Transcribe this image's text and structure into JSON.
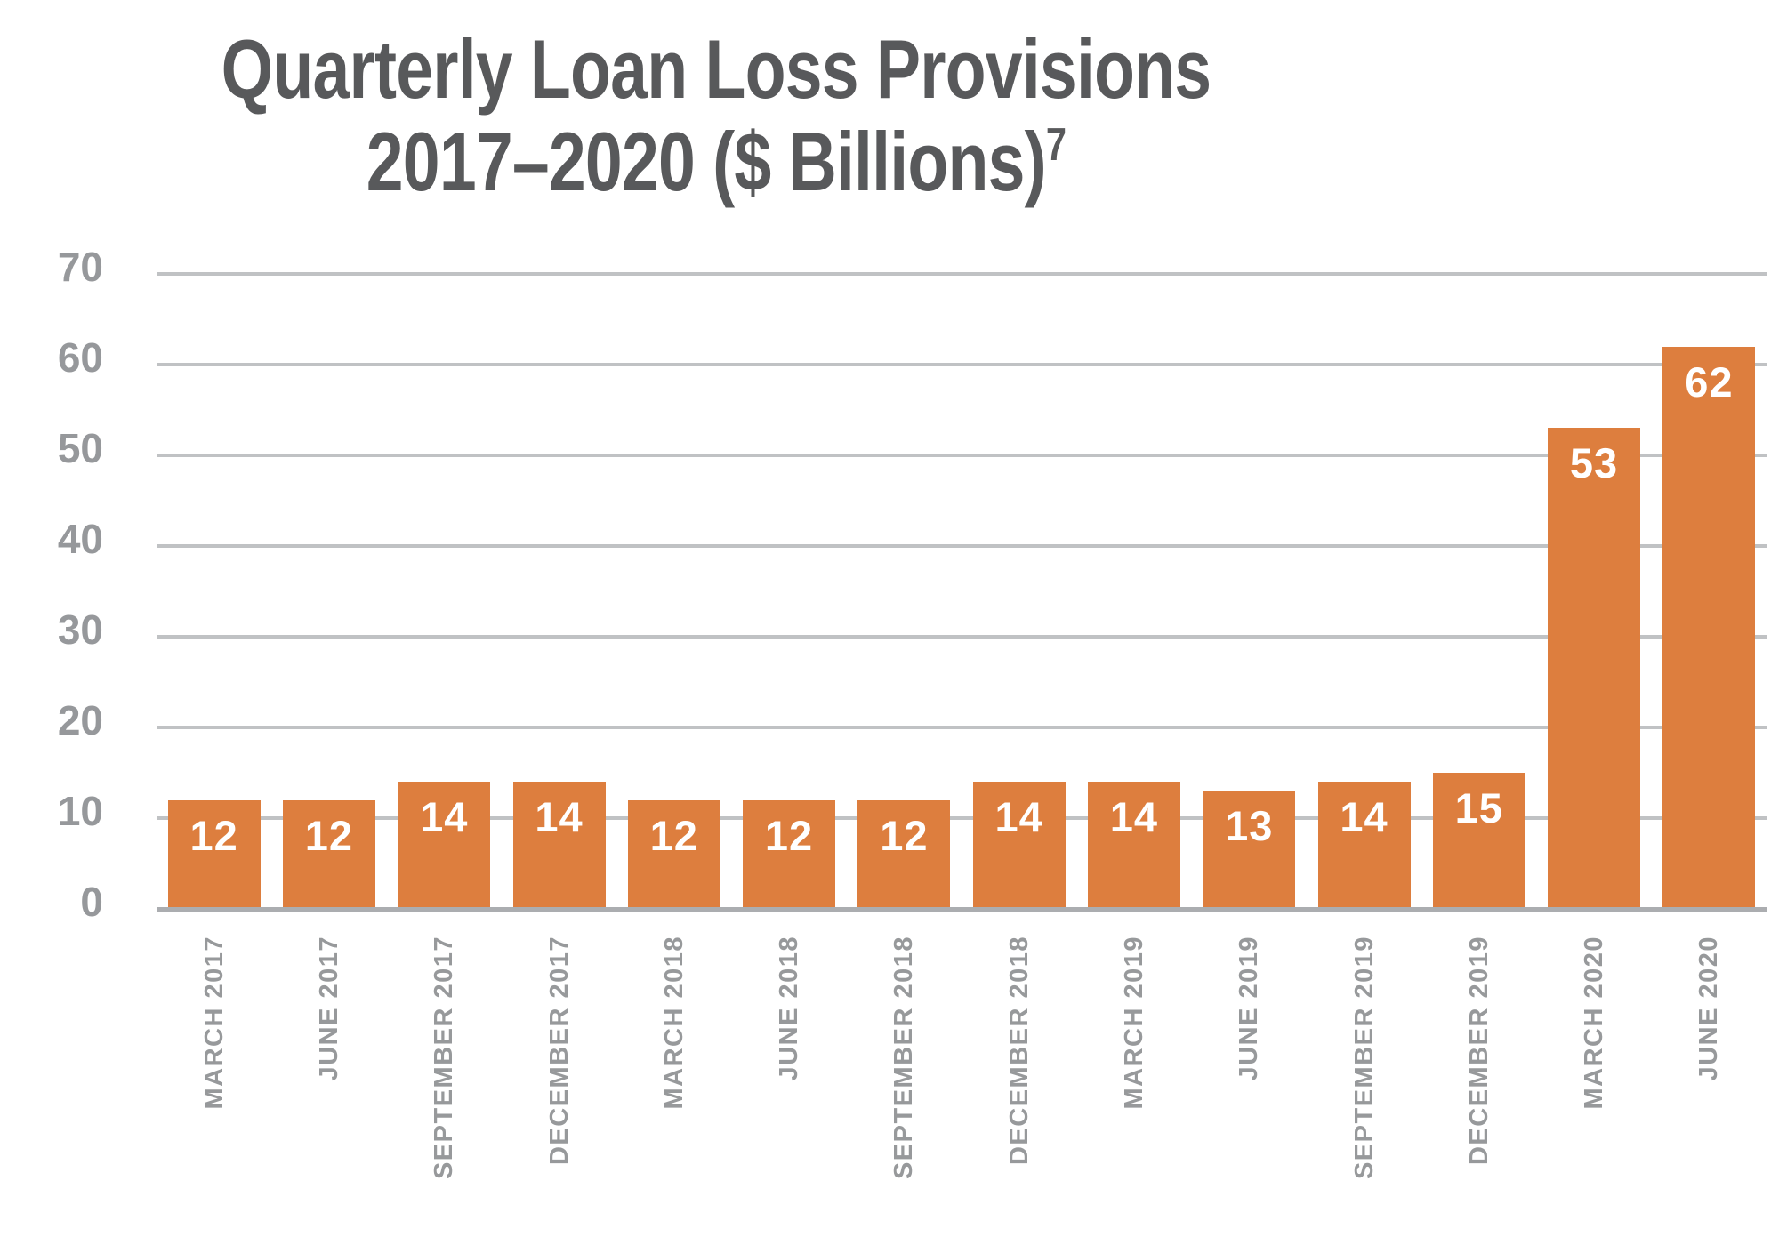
{
  "title": {
    "line1": "Quarterly Loan Loss Provisions",
    "line2": "2017–2020 ($ Billions)",
    "footnote_superscript": "7"
  },
  "chart_data": {
    "type": "bar",
    "title": "Quarterly Loan Loss Provisions 2017–2020 ($ Billions)",
    "footnote_marker": "7",
    "categories": [
      "MARCH 2017",
      "JUNE 2017",
      "SEPTEMBER 2017",
      "DECEMBER 2017",
      "MARCH 2018",
      "JUNE 2018",
      "SEPTEMBER 2018",
      "DECEMBER 2018",
      "MARCH 2019",
      "JUNE 2019",
      "SEPTEMBER 2019",
      "DECEMBER 2019",
      "MARCH 2020",
      "JUNE 2020"
    ],
    "values": [
      12,
      12,
      14,
      14,
      12,
      12,
      12,
      14,
      14,
      13,
      14,
      15,
      53,
      62
    ],
    "xlabel": "",
    "ylabel": "",
    "ylim": [
      0,
      70
    ],
    "yticks": [
      0,
      10,
      20,
      30,
      40,
      50,
      60,
      70
    ],
    "grid": true,
    "legend": "none",
    "bar_color": "#DD7E3E",
    "value_label_color": "#FFFFFF",
    "title_color": "#58595B",
    "axis_tick_color": "#96989B",
    "x_label_color": "#97999B",
    "gridline_color": "#C0C2C4",
    "baseline_color": "#ABADB0"
  }
}
